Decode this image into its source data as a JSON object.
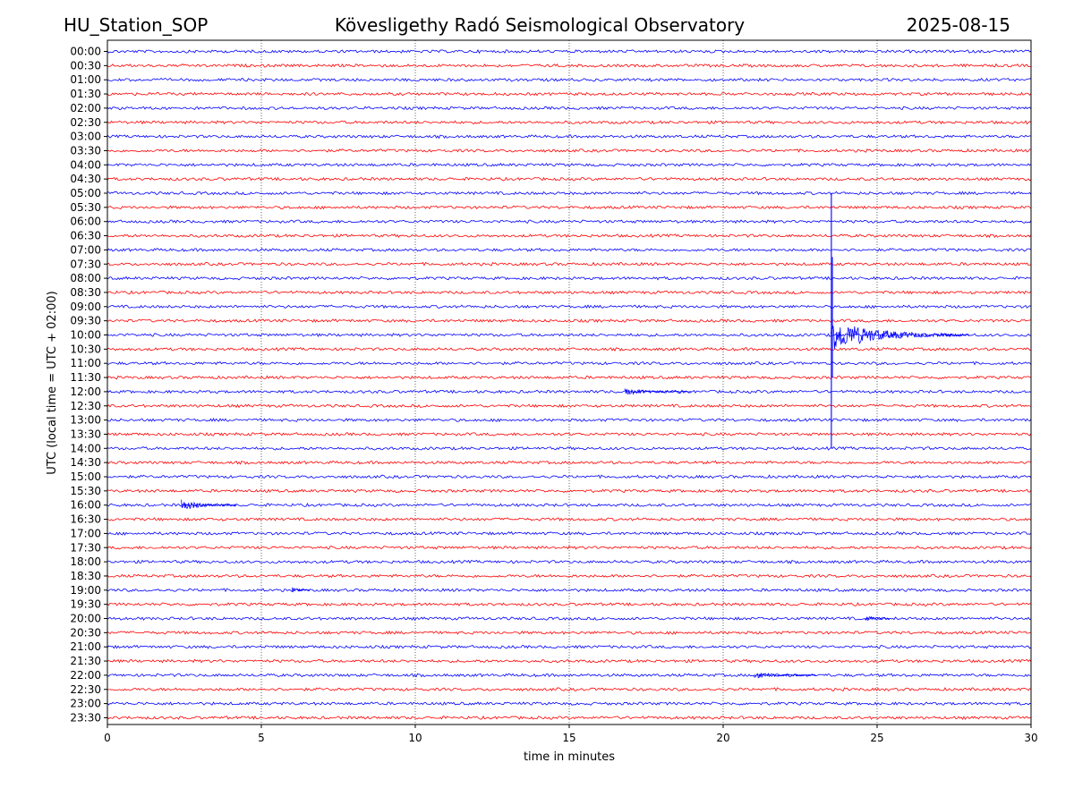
{
  "header": {
    "station": "HU_Station_SOP",
    "observatory": "Kövesligethy Radó Seismological Observatory",
    "date": "2025-08-15"
  },
  "chart_data": {
    "type": "line",
    "title": "Kövesligethy Radó Seismological Observatory",
    "xlabel": "time in minutes",
    "ylabel": "UTC (local time = UTC + 02:00)",
    "xlim": [
      0,
      30
    ],
    "x_ticks": [
      0,
      5,
      10,
      15,
      20,
      25,
      30
    ],
    "vertical_gridlines_at": [
      5,
      10,
      15,
      20,
      25
    ],
    "grid": "vertical dotted",
    "trace_colors": [
      "#0000ff",
      "#ff0000"
    ],
    "trace_labels": [
      "00:00",
      "00:30",
      "01:00",
      "01:30",
      "02:00",
      "02:30",
      "03:00",
      "03:30",
      "04:00",
      "04:30",
      "05:00",
      "05:30",
      "06:00",
      "06:30",
      "07:00",
      "07:30",
      "08:00",
      "08:30",
      "09:00",
      "09:30",
      "10:00",
      "10:30",
      "11:00",
      "11:30",
      "12:00",
      "12:30",
      "13:00",
      "13:30",
      "14:00",
      "14:30",
      "15:00",
      "15:30",
      "16:00",
      "16:30",
      "17:00",
      "17:30",
      "18:00",
      "18:30",
      "19:00",
      "19:30",
      "20:00",
      "20:30",
      "21:00",
      "21:30",
      "22:00",
      "22:30",
      "23:00",
      "23:30"
    ],
    "events": [
      {
        "trace": "10:00",
        "start_min": 23.5,
        "end_min": 28.0,
        "amplitude": "very large, spike spans approx. traces 05:00 to 14:00"
      },
      {
        "trace": "16:00",
        "start_min": 2.4,
        "end_min": 4.2,
        "amplitude": "moderate"
      },
      {
        "trace": "19:00",
        "start_min": 6.0,
        "end_min": 6.6,
        "amplitude": "small"
      },
      {
        "trace": "20:00",
        "start_min": 24.6,
        "end_min": 25.4,
        "amplitude": "small"
      },
      {
        "trace": "12:00",
        "start_min": 16.8,
        "end_min": 19.0,
        "amplitude": "small"
      },
      {
        "trace": "22:00",
        "start_min": 21.0,
        "end_min": 23.0,
        "amplitude": "small"
      }
    ]
  }
}
